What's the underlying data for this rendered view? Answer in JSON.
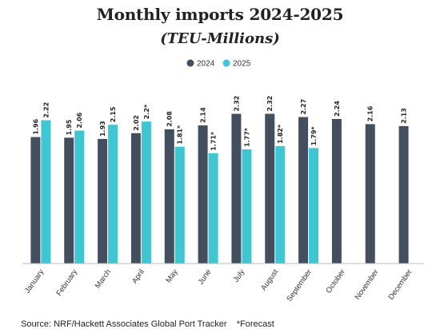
{
  "chart_data": {
    "type": "bar",
    "title": "Monthly imports 2024-2025",
    "subtitle": "(TEU-Millions)",
    "categories": [
      "January",
      "February",
      "March",
      "April",
      "May",
      "June",
      "July",
      "August",
      "September",
      "October",
      "November",
      "December"
    ],
    "series": [
      {
        "name": "2024",
        "color": "#434e5e",
        "values": [
          1.96,
          1.95,
          1.93,
          2.02,
          2.08,
          2.14,
          2.32,
          2.32,
          2.27,
          2.24,
          2.16,
          2.13
        ],
        "labels": [
          "1.96",
          "1.95",
          "1.93",
          "2.02",
          "2.08",
          "2.14",
          "2.32",
          "2.32",
          "2.27",
          "2.24",
          "2.16",
          "2.13"
        ]
      },
      {
        "name": "2025",
        "color": "#3ec6d3",
        "values": [
          2.22,
          2.06,
          2.15,
          2.2,
          1.81,
          1.71,
          1.77,
          1.82,
          1.79,
          null,
          null,
          null
        ],
        "labels": [
          "2.22",
          "2.06",
          "2.15",
          "2.2*",
          "1.81*",
          "1.71*",
          "1.77*",
          "1.82*",
          "1.79*",
          "",
          "",
          ""
        ]
      }
    ],
    "ylim": [
      0,
      2.45
    ],
    "grid": false,
    "legend_position": "top-center",
    "xlabel": "",
    "ylabel": "",
    "source": "Source: NRF/Hackett Associates Global Port Tracker",
    "footnote": "*Forecast",
    "axis_color": "#bbbbbb"
  }
}
